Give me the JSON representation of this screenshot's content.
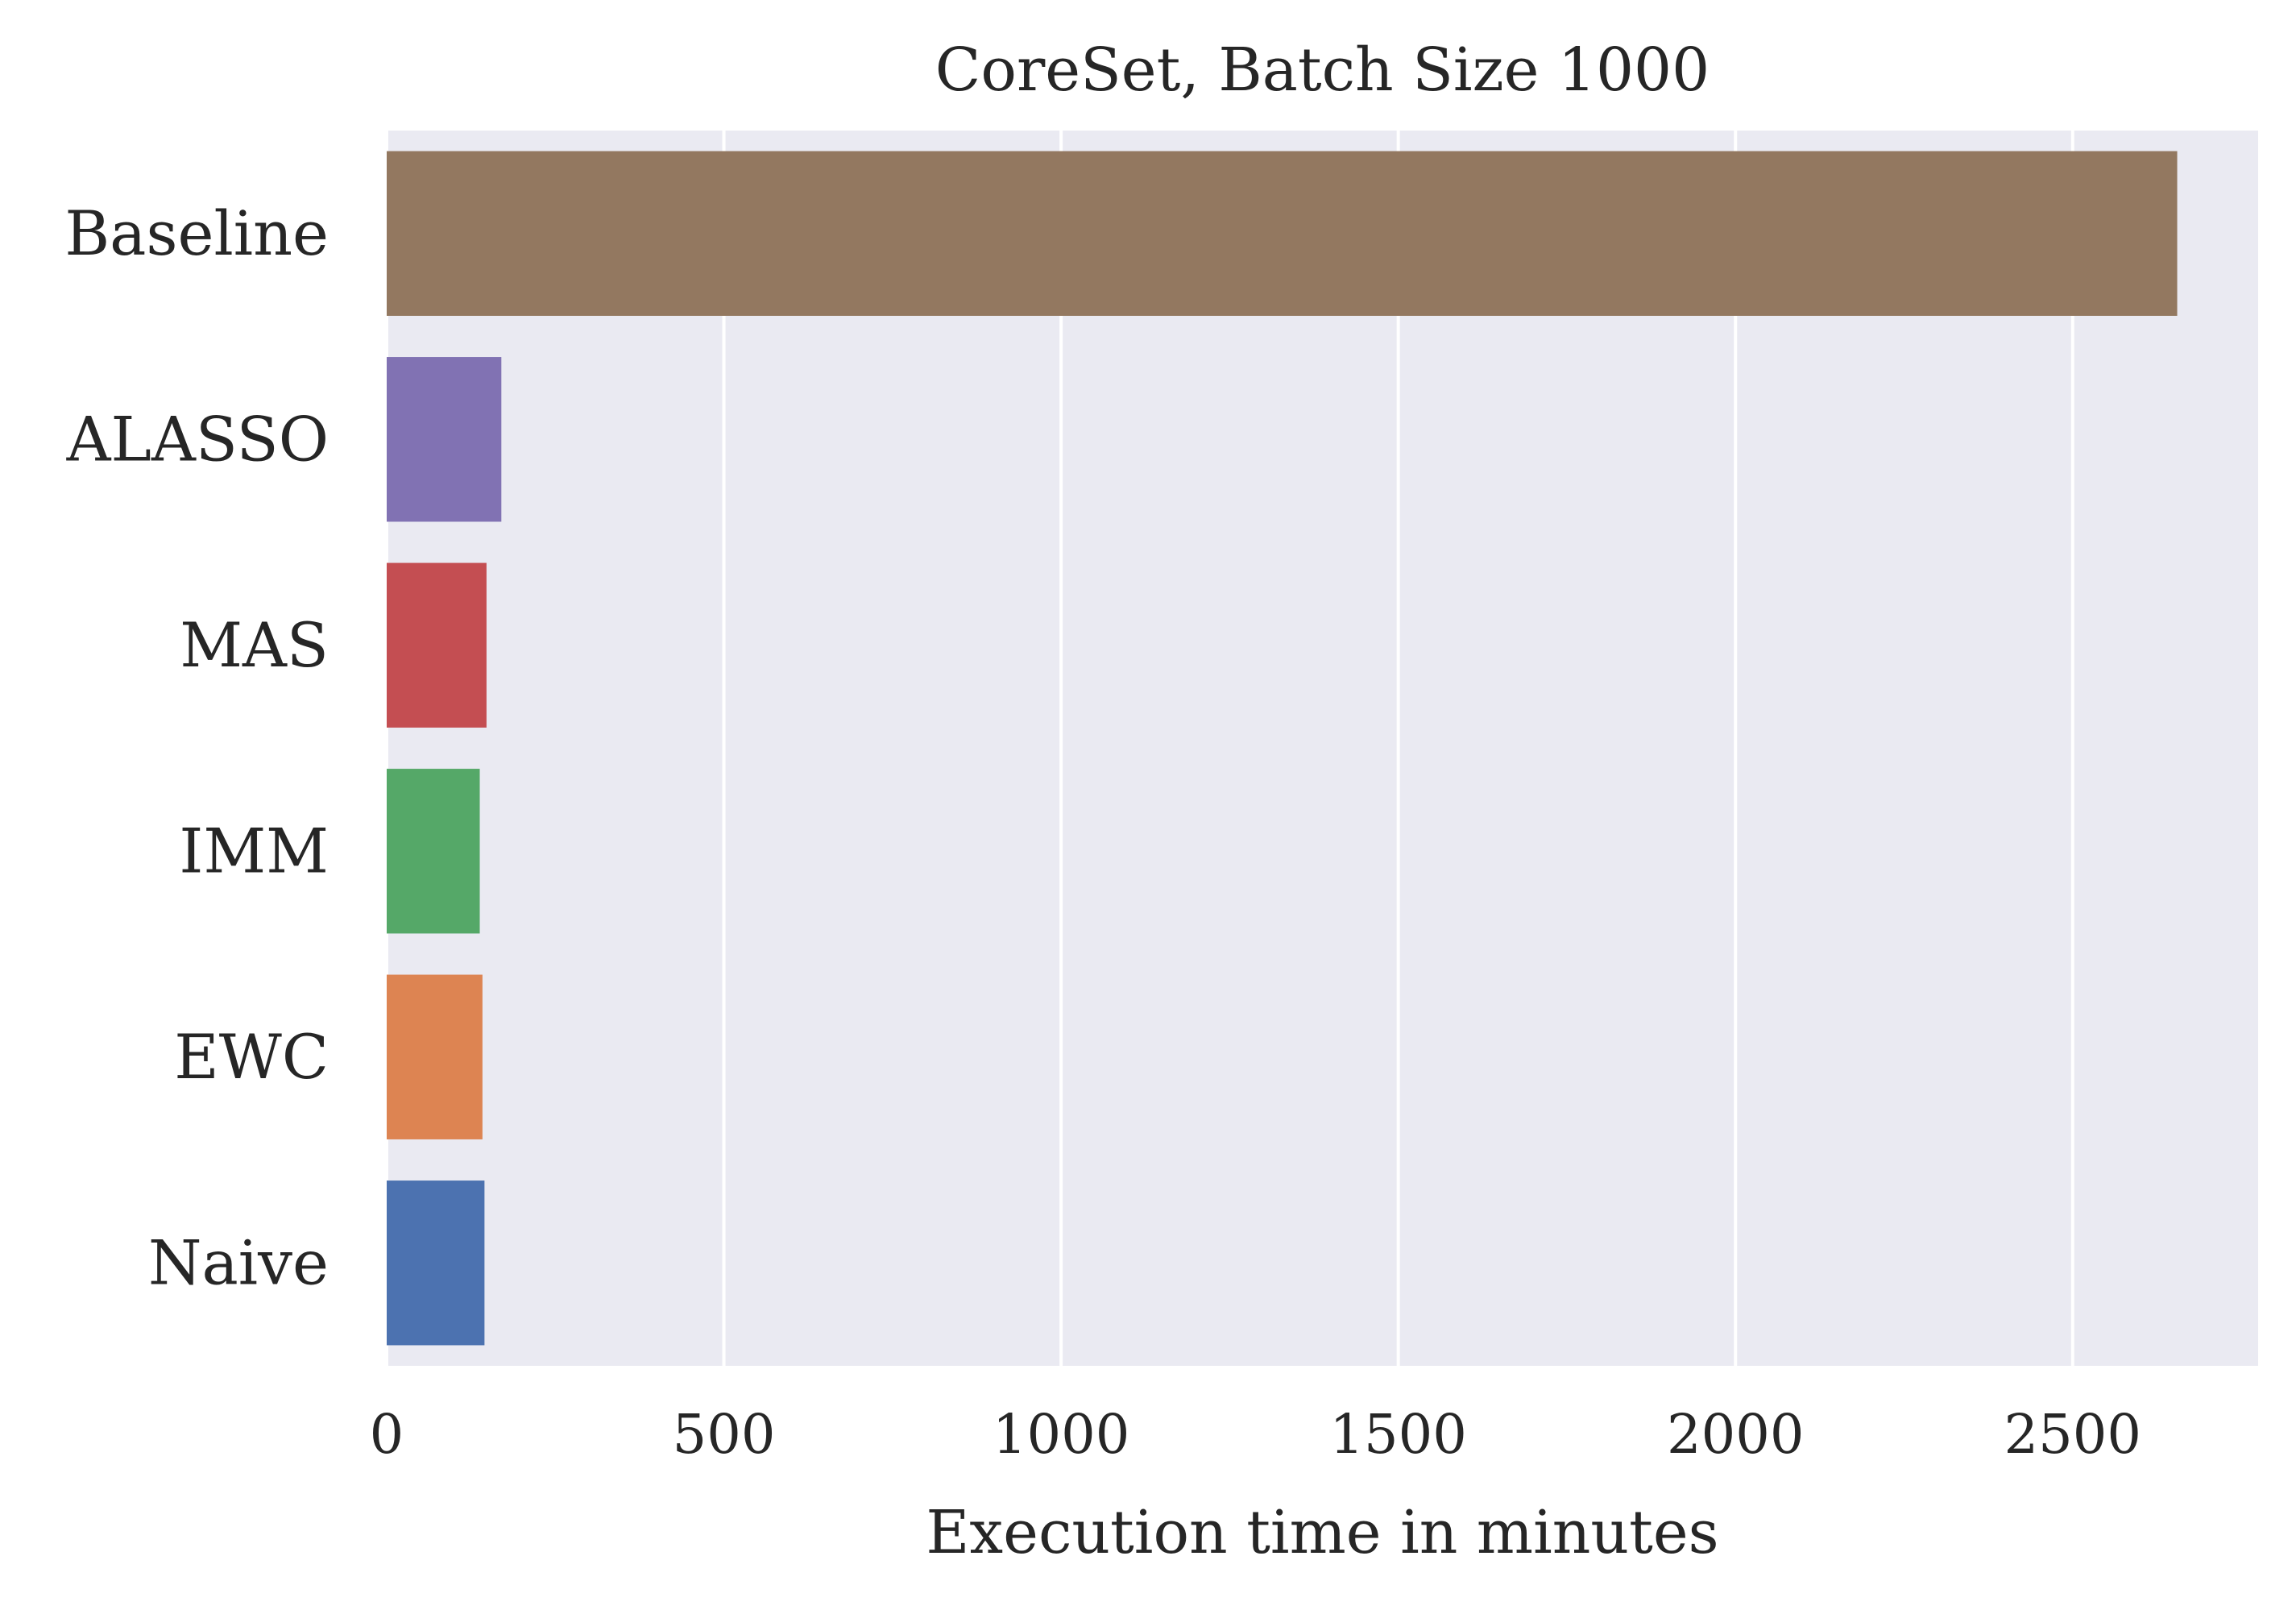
{
  "chart_data": {
    "type": "bar",
    "orientation": "horizontal",
    "title": "CoreSet, Batch Size 1000",
    "xlabel": "Execution time in minutes",
    "ylabel": "",
    "xlim": [
      0,
      2775
    ],
    "xticks": [
      0,
      500,
      1000,
      1500,
      2000,
      2500
    ],
    "xtick_labels": [
      "0",
      "500",
      "1000",
      "1500",
      "2000",
      "2500"
    ],
    "grid": true,
    "categories": [
      "Baseline",
      "ALASSO",
      "MAS",
      "IMM",
      "EWC",
      "Naive"
    ],
    "values": [
      2655,
      170,
      148,
      138,
      142,
      145
    ],
    "colors": [
      "#937860",
      "#8172b3",
      "#c44e52",
      "#55a868",
      "#dd8452",
      "#4c72b0"
    ],
    "background": "#eaeaf2"
  }
}
